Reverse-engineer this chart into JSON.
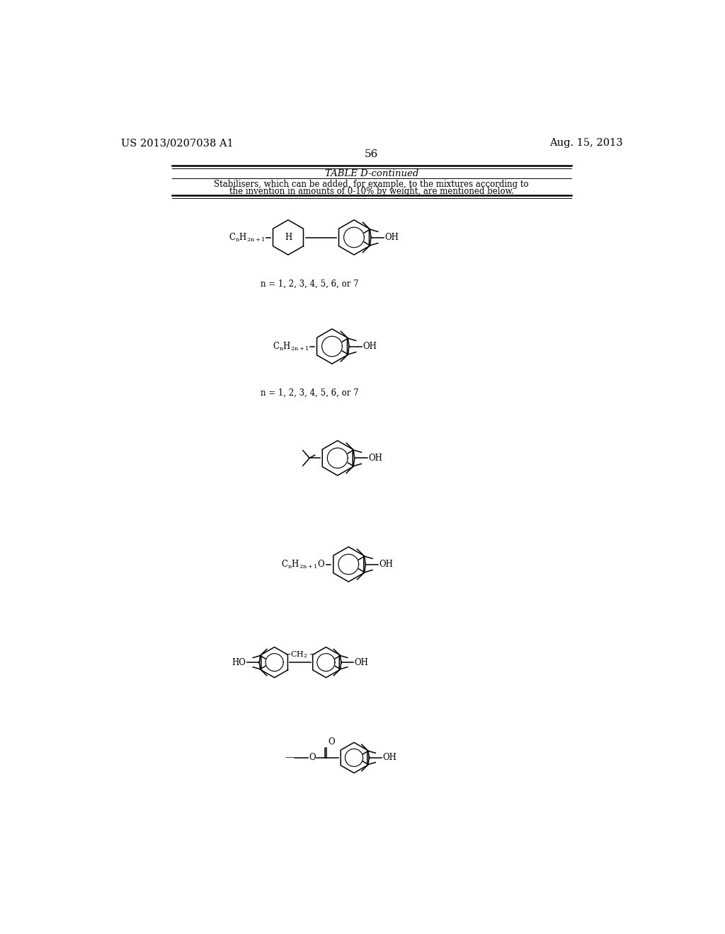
{
  "background_color": "#ffffff",
  "header_left": "US 2013/0207038 A1",
  "header_right": "Aug. 15, 2013",
  "page_number": "56",
  "table_title": "TABLE D-continued",
  "table_description_line1": "Stabilisers, which can be added, for example, to the mixtures according to",
  "table_description_line2": "the invention in amounts of 0-10% by weight, are mentioned below.",
  "n_label": "n = 1, 2, 3, 4, 5, 6, or 7"
}
